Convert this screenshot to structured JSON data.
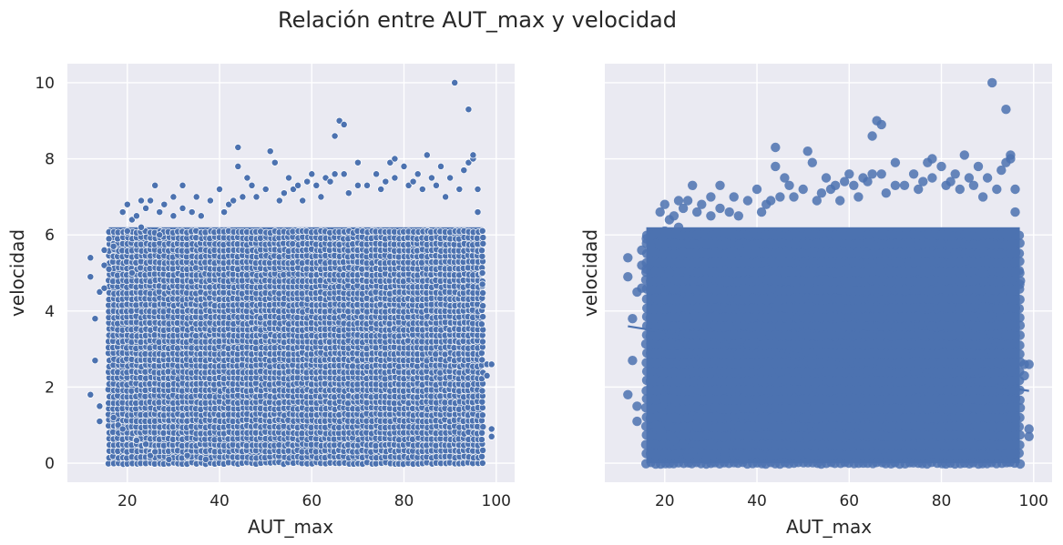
{
  "figure_title": "Relación entre AUT_max y velocidad",
  "colors": {
    "background": "#eaeaf2",
    "grid": "#ffffff",
    "point": "#4c72b0",
    "point_edge": "#ffffff",
    "text": "#262626"
  },
  "chart_data": [
    {
      "type": "scatter",
      "title": "",
      "xlabel": "AUT_max",
      "ylabel": "velocidad",
      "xlim": [
        7,
        104
      ],
      "ylim": [
        -0.5,
        10.5
      ],
      "xticks": [
        "20",
        "40",
        "60",
        "80",
        "100"
      ],
      "yticks": [
        "0",
        "2",
        "4",
        "6",
        "8",
        "10"
      ],
      "grid": true,
      "marker_edge": "white",
      "dense_region": {
        "x": [
          16,
          97
        ],
        "y": [
          0,
          6.2
        ]
      },
      "points": [
        [
          12,
          1.8
        ],
        [
          12,
          4.9
        ],
        [
          12,
          5.4
        ],
        [
          13,
          3.8
        ],
        [
          13,
          2.7
        ],
        [
          14,
          4.5
        ],
        [
          14,
          1.1
        ],
        [
          14,
          1.5
        ],
        [
          15,
          5.6
        ],
        [
          15,
          5.2
        ],
        [
          15,
          4.6
        ],
        [
          16,
          5.9
        ],
        [
          16,
          5.1
        ],
        [
          17,
          1.2
        ],
        [
          17,
          5.7
        ],
        [
          18,
          1.0
        ],
        [
          19,
          0.9
        ],
        [
          19,
          6.6
        ],
        [
          20,
          6.8
        ],
        [
          20,
          6.1
        ],
        [
          21,
          6.4
        ],
        [
          21,
          5.0
        ],
        [
          22,
          6.5
        ],
        [
          22,
          0.6
        ],
        [
          23,
          6.9
        ],
        [
          23,
          6.2
        ],
        [
          24,
          0.5
        ],
        [
          24,
          6.7
        ],
        [
          25,
          6.9
        ],
        [
          25,
          0.2
        ],
        [
          26,
          7.3
        ],
        [
          26,
          0.3
        ],
        [
          27,
          6.6
        ],
        [
          27,
          6.0
        ],
        [
          28,
          6.8
        ],
        [
          29,
          0.1
        ],
        [
          30,
          7.0
        ],
        [
          30,
          6.5
        ],
        [
          32,
          7.3
        ],
        [
          32,
          6.7
        ],
        [
          33,
          0.2
        ],
        [
          34,
          6.6
        ],
        [
          35,
          7.0
        ],
        [
          36,
          6.5
        ],
        [
          37,
          0.1
        ],
        [
          38,
          6.9
        ],
        [
          40,
          7.2
        ],
        [
          41,
          6.6
        ],
        [
          42,
          6.8
        ],
        [
          43,
          6.9
        ],
        [
          44,
          8.3
        ],
        [
          44,
          7.8
        ],
        [
          45,
          7.0
        ],
        [
          46,
          7.5
        ],
        [
          47,
          7.3
        ],
        [
          48,
          7.0
        ],
        [
          50,
          7.2
        ],
        [
          51,
          8.2
        ],
        [
          52,
          7.9
        ],
        [
          53,
          6.9
        ],
        [
          54,
          7.1
        ],
        [
          55,
          7.5
        ],
        [
          56,
          7.2
        ],
        [
          57,
          7.3
        ],
        [
          58,
          6.9
        ],
        [
          59,
          7.4
        ],
        [
          60,
          7.6
        ],
        [
          61,
          7.3
        ],
        [
          62,
          7.0
        ],
        [
          63,
          7.5
        ],
        [
          64,
          7.4
        ],
        [
          65,
          8.6
        ],
        [
          65,
          7.6
        ],
        [
          66,
          9.0
        ],
        [
          67,
          8.9
        ],
        [
          67,
          7.6
        ],
        [
          68,
          7.1
        ],
        [
          70,
          7.9
        ],
        [
          70,
          7.3
        ],
        [
          72,
          7.3
        ],
        [
          74,
          7.6
        ],
        [
          75,
          7.2
        ],
        [
          76,
          7.4
        ],
        [
          77,
          7.9
        ],
        [
          78,
          8.0
        ],
        [
          78,
          7.5
        ],
        [
          80,
          7.8
        ],
        [
          81,
          7.3
        ],
        [
          82,
          7.4
        ],
        [
          83,
          7.6
        ],
        [
          84,
          7.2
        ],
        [
          85,
          8.1
        ],
        [
          86,
          7.5
        ],
        [
          87,
          7.3
        ],
        [
          88,
          7.8
        ],
        [
          89,
          7.0
        ],
        [
          90,
          7.5
        ],
        [
          91,
          10.0
        ],
        [
          92,
          7.2
        ],
        [
          93,
          7.7
        ],
        [
          94,
          9.3
        ],
        [
          94,
          7.9
        ],
        [
          95,
          8.0
        ],
        [
          95,
          8.1
        ],
        [
          96,
          7.2
        ],
        [
          96,
          6.6
        ],
        [
          97,
          5.0
        ],
        [
          97,
          4.7
        ],
        [
          98,
          2.6
        ],
        [
          98,
          2.3
        ],
        [
          99,
          2.6
        ],
        [
          99,
          0.9
        ],
        [
          99,
          0.7
        ]
      ]
    },
    {
      "type": "scatter",
      "title": "",
      "xlabel": "AUT_max",
      "ylabel": "velocidad",
      "xlim": [
        7,
        104
      ],
      "ylim": [
        -0.5,
        10.5
      ],
      "xticks": [
        "20",
        "40",
        "60",
        "80",
        "100"
      ],
      "yticks": [],
      "grid": true,
      "marker_edge": "none",
      "dense_region": {
        "x": [
          16,
          97
        ],
        "y": [
          0,
          6.2
        ]
      },
      "regression_line": {
        "x": [
          12,
          99
        ],
        "y": [
          3.6,
          1.9
        ]
      },
      "points": [
        [
          12,
          1.8
        ],
        [
          12,
          4.9
        ],
        [
          12,
          5.4
        ],
        [
          13,
          3.8
        ],
        [
          13,
          2.7
        ],
        [
          14,
          4.5
        ],
        [
          14,
          1.1
        ],
        [
          14,
          1.5
        ],
        [
          15,
          5.6
        ],
        [
          15,
          5.2
        ],
        [
          15,
          4.6
        ],
        [
          16,
          5.9
        ],
        [
          16,
          5.1
        ],
        [
          17,
          1.2
        ],
        [
          17,
          5.7
        ],
        [
          18,
          1.0
        ],
        [
          19,
          0.9
        ],
        [
          19,
          6.6
        ],
        [
          20,
          6.8
        ],
        [
          20,
          6.1
        ],
        [
          21,
          6.4
        ],
        [
          21,
          5.0
        ],
        [
          22,
          6.5
        ],
        [
          22,
          0.6
        ],
        [
          23,
          6.9
        ],
        [
          23,
          6.2
        ],
        [
          24,
          0.5
        ],
        [
          24,
          6.7
        ],
        [
          25,
          6.9
        ],
        [
          25,
          0.2
        ],
        [
          26,
          7.3
        ],
        [
          26,
          0.3
        ],
        [
          27,
          6.6
        ],
        [
          27,
          6.0
        ],
        [
          28,
          6.8
        ],
        [
          29,
          0.1
        ],
        [
          30,
          7.0
        ],
        [
          30,
          6.5
        ],
        [
          32,
          7.3
        ],
        [
          32,
          6.7
        ],
        [
          33,
          0.2
        ],
        [
          34,
          6.6
        ],
        [
          35,
          7.0
        ],
        [
          36,
          6.5
        ],
        [
          37,
          0.1
        ],
        [
          38,
          6.9
        ],
        [
          40,
          7.2
        ],
        [
          41,
          6.6
        ],
        [
          42,
          6.8
        ],
        [
          43,
          6.9
        ],
        [
          44,
          8.3
        ],
        [
          44,
          7.8
        ],
        [
          45,
          7.0
        ],
        [
          46,
          7.5
        ],
        [
          47,
          7.3
        ],
        [
          48,
          7.0
        ],
        [
          50,
          7.2
        ],
        [
          51,
          8.2
        ],
        [
          52,
          7.9
        ],
        [
          53,
          6.9
        ],
        [
          54,
          7.1
        ],
        [
          55,
          7.5
        ],
        [
          56,
          7.2
        ],
        [
          57,
          7.3
        ],
        [
          58,
          6.9
        ],
        [
          59,
          7.4
        ],
        [
          60,
          7.6
        ],
        [
          61,
          7.3
        ],
        [
          62,
          7.0
        ],
        [
          63,
          7.5
        ],
        [
          64,
          7.4
        ],
        [
          65,
          8.6
        ],
        [
          65,
          7.6
        ],
        [
          66,
          9.0
        ],
        [
          67,
          8.9
        ],
        [
          67,
          7.6
        ],
        [
          68,
          7.1
        ],
        [
          70,
          7.9
        ],
        [
          70,
          7.3
        ],
        [
          72,
          7.3
        ],
        [
          74,
          7.6
        ],
        [
          75,
          7.2
        ],
        [
          76,
          7.4
        ],
        [
          77,
          7.9
        ],
        [
          78,
          8.0
        ],
        [
          78,
          7.5
        ],
        [
          80,
          7.8
        ],
        [
          81,
          7.3
        ],
        [
          82,
          7.4
        ],
        [
          83,
          7.6
        ],
        [
          84,
          7.2
        ],
        [
          85,
          8.1
        ],
        [
          86,
          7.5
        ],
        [
          87,
          7.3
        ],
        [
          88,
          7.8
        ],
        [
          89,
          7.0
        ],
        [
          90,
          7.5
        ],
        [
          91,
          10.0
        ],
        [
          92,
          7.2
        ],
        [
          93,
          7.7
        ],
        [
          94,
          9.3
        ],
        [
          94,
          7.9
        ],
        [
          95,
          8.0
        ],
        [
          95,
          8.1
        ],
        [
          96,
          7.2
        ],
        [
          96,
          6.6
        ],
        [
          97,
          5.0
        ],
        [
          97,
          4.7
        ],
        [
          98,
          2.6
        ],
        [
          98,
          2.3
        ],
        [
          99,
          2.6
        ],
        [
          99,
          0.9
        ],
        [
          99,
          0.7
        ]
      ]
    }
  ]
}
